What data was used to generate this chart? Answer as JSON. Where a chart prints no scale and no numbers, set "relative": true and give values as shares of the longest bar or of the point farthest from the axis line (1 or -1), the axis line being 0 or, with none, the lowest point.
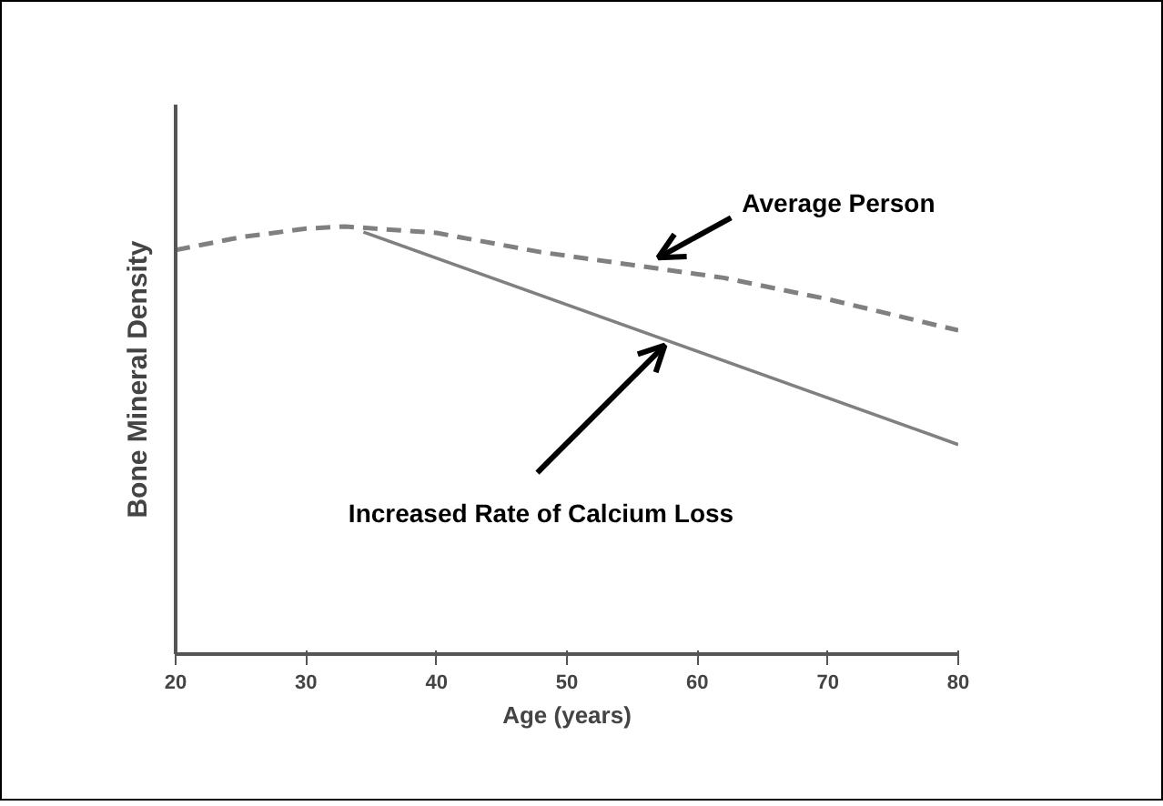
{
  "chart_data": {
    "type": "line",
    "relative": true,
    "xlabel": "Age (years)",
    "ylabel": "Bone Mineral Density",
    "xlim": [
      20,
      80
    ],
    "xticks": [
      20,
      30,
      40,
      50,
      60,
      70,
      80
    ],
    "series": [
      {
        "color": "#808080",
        "line_style": "dashed",
        "x": [
          20,
          25,
          30,
          33,
          40,
          48,
          55,
          62,
          70,
          80
        ],
        "values": [
          0.945,
          0.975,
          0.995,
          1.0,
          0.985,
          0.94,
          0.91,
          0.88,
          0.83,
          0.757
        ]
      },
      {
        "color": "#808080",
        "line_style": "solid",
        "x": [
          34.4,
          80
        ],
        "values": [
          0.987,
          0.49
        ]
      }
    ],
    "annotations": [
      {
        "text": "Average Person",
        "x": 57,
        "y": 0.91
      },
      {
        "text": "Increased Rate of Calcium Loss",
        "x": 57.5,
        "y": 0.735
      }
    ],
    "grid": false
  }
}
